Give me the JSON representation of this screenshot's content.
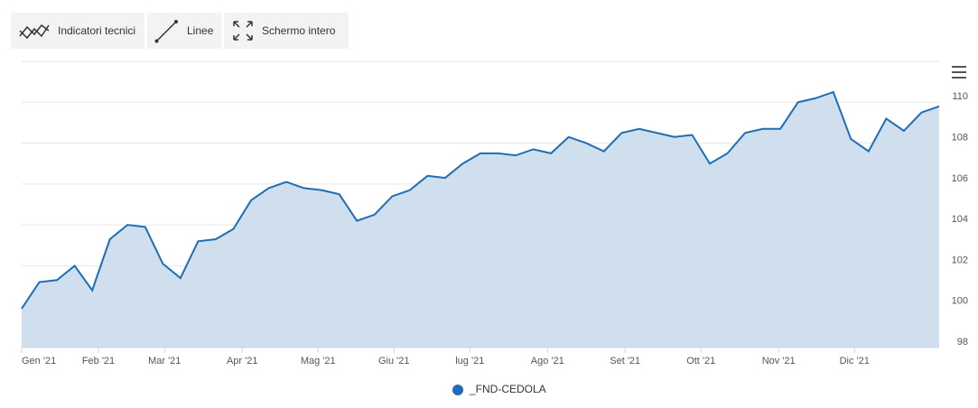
{
  "toolbar": {
    "indicators": "Indicatori tecnici",
    "lines": "Linee",
    "fullscreen": "Schermo intero"
  },
  "chart_data": {
    "type": "area",
    "series": [
      {
        "name": "_FND-CEDOLA",
        "color": "#1f6db5",
        "fill": "#cfdfee",
        "values": [
          99.9,
          101.2,
          101.3,
          102,
          100.8,
          103.3,
          104,
          103.9,
          102.1,
          101.4,
          103.2,
          103.3,
          103.8,
          105.2,
          105.8,
          106.1,
          105.8,
          105.7,
          105.5,
          104.2,
          104.5,
          105.4,
          105.7,
          106.4,
          106.3,
          107,
          107.5,
          107.5,
          107.4,
          107.7,
          107.5,
          108.3,
          108,
          107.6,
          108.5,
          108.7,
          108.5,
          108.3,
          108.4,
          107,
          107.5,
          108.5,
          108.7,
          108.7,
          110,
          110.2,
          110.5,
          108.2,
          107.6,
          109.2,
          108.6,
          109.5,
          109.8
        ]
      }
    ],
    "xlim": [
      0,
      52
    ],
    "xticks": [
      {
        "value": 0,
        "label": "Gen '21"
      },
      {
        "value": 4.35,
        "label": "Feb '21"
      },
      {
        "value": 8.1,
        "label": "Mar '21"
      },
      {
        "value": 12.5,
        "label": "Apr '21"
      },
      {
        "value": 16.8,
        "label": "Mag '21"
      },
      {
        "value": 21.1,
        "label": "Giu '21"
      },
      {
        "value": 25.4,
        "label": "lug '21"
      },
      {
        "value": 29.8,
        "label": "Ago '21"
      },
      {
        "value": 34.2,
        "label": "Set '21"
      },
      {
        "value": 38.5,
        "label": "Ott '21"
      },
      {
        "value": 42.9,
        "label": "Nov '21"
      },
      {
        "value": 47.2,
        "label": "Dic '21"
      }
    ],
    "ylim": [
      98,
      112
    ],
    "yticks": [
      98,
      100,
      102,
      104,
      106,
      108,
      110
    ],
    "grid": true,
    "legend": "bottom"
  }
}
